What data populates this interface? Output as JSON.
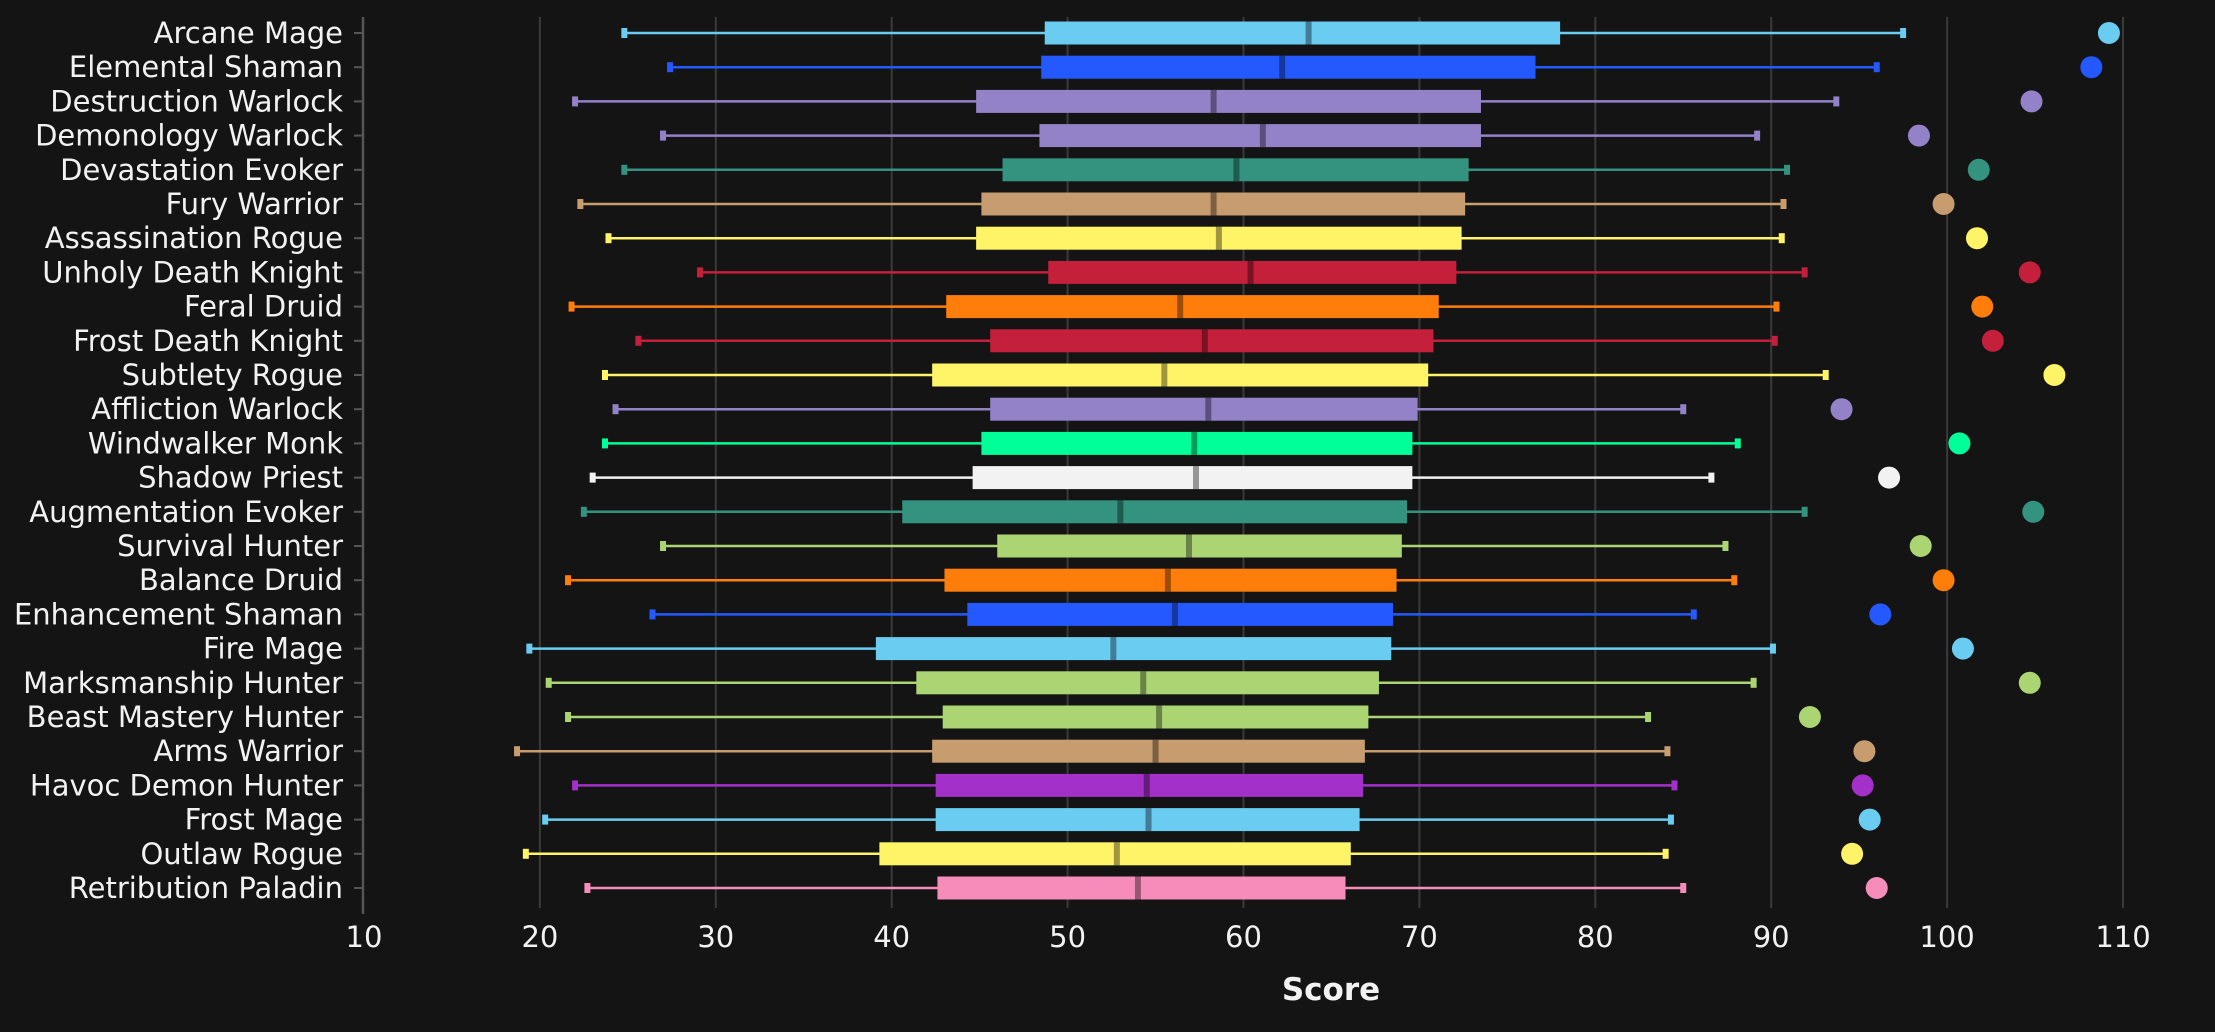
{
  "chart_data": {
    "type": "box",
    "orientation": "horizontal",
    "xlabel": "Score",
    "xlim": [
      10,
      110
    ],
    "xticks": [
      10,
      20,
      30,
      40,
      50,
      60,
      70,
      80,
      90,
      100,
      110
    ],
    "grid": true,
    "background": "#141414",
    "series": [
      {
        "category": "Arcane Mage",
        "color": "#69ccf0",
        "min": 24.8,
        "q1": 48.7,
        "median": 63.7,
        "q3": 78.0,
        "max": 97.5,
        "outlier": 109.2
      },
      {
        "category": "Elemental Shaman",
        "color": "#2459ff",
        "min": 27.4,
        "q1": 48.5,
        "median": 62.2,
        "q3": 76.6,
        "max": 96.0,
        "outlier": 108.2
      },
      {
        "category": "Destruction Warlock",
        "color": "#9482c9",
        "min": 22.0,
        "q1": 44.8,
        "median": 58.3,
        "q3": 73.5,
        "max": 93.7,
        "outlier": 104.8
      },
      {
        "category": "Demonology Warlock",
        "color": "#9482c9",
        "min": 27.0,
        "q1": 48.4,
        "median": 61.1,
        "q3": 73.5,
        "max": 89.2,
        "outlier": 98.4
      },
      {
        "category": "Devastation Evoker",
        "color": "#33937f",
        "min": 24.8,
        "q1": 46.3,
        "median": 59.6,
        "q3": 72.8,
        "max": 90.9,
        "outlier": 101.8
      },
      {
        "category": "Fury Warrior",
        "color": "#c79c6e",
        "min": 22.3,
        "q1": 45.1,
        "median": 58.3,
        "q3": 72.6,
        "max": 90.7,
        "outlier": 99.8
      },
      {
        "category": "Assassination Rogue",
        "color": "#fff468",
        "min": 23.9,
        "q1": 44.8,
        "median": 58.6,
        "q3": 72.4,
        "max": 90.6,
        "outlier": 101.7
      },
      {
        "category": "Unholy Death Knight",
        "color": "#c41f3b",
        "min": 29.1,
        "q1": 48.9,
        "median": 60.4,
        "q3": 72.1,
        "max": 91.9,
        "outlier": 104.7
      },
      {
        "category": "Feral Druid",
        "color": "#ff7d0a",
        "min": 21.8,
        "q1": 43.1,
        "median": 56.4,
        "q3": 71.1,
        "max": 90.3,
        "outlier": 102.0
      },
      {
        "category": "Frost Death Knight",
        "color": "#c41f3b",
        "min": 25.6,
        "q1": 45.6,
        "median": 57.8,
        "q3": 70.8,
        "max": 90.2,
        "outlier": 102.6
      },
      {
        "category": "Subtlety Rogue",
        "color": "#fff468",
        "min": 23.7,
        "q1": 42.3,
        "median": 55.5,
        "q3": 70.5,
        "max": 93.1,
        "outlier": 106.1
      },
      {
        "category": "Affliction Warlock",
        "color": "#9482c9",
        "min": 24.3,
        "q1": 45.6,
        "median": 58.0,
        "q3": 69.9,
        "max": 85.0,
        "outlier": 94.0
      },
      {
        "category": "Windwalker Monk",
        "color": "#00ff98",
        "min": 23.7,
        "q1": 45.1,
        "median": 57.2,
        "q3": 69.6,
        "max": 88.1,
        "outlier": 100.7
      },
      {
        "category": "Shadow Priest",
        "color": "#f2f2f2",
        "min": 23.0,
        "q1": 44.6,
        "median": 57.3,
        "q3": 69.6,
        "max": 86.6,
        "outlier": 96.7
      },
      {
        "category": "Augmentation Evoker",
        "color": "#33937f",
        "min": 22.5,
        "q1": 40.6,
        "median": 53.0,
        "q3": 69.3,
        "max": 91.9,
        "outlier": 104.9
      },
      {
        "category": "Survival Hunter",
        "color": "#abd473",
        "min": 27.0,
        "q1": 46.0,
        "median": 56.9,
        "q3": 69.0,
        "max": 87.4,
        "outlier": 98.5
      },
      {
        "category": "Balance Druid",
        "color": "#ff7d0a",
        "min": 21.6,
        "q1": 43.0,
        "median": 55.7,
        "q3": 68.7,
        "max": 87.9,
        "outlier": 99.8
      },
      {
        "category": "Enhancement Shaman",
        "color": "#2459ff",
        "min": 26.4,
        "q1": 44.3,
        "median": 56.1,
        "q3": 68.5,
        "max": 85.6,
        "outlier": 96.2
      },
      {
        "category": "Fire Mage",
        "color": "#69ccf0",
        "min": 19.4,
        "q1": 39.1,
        "median": 52.6,
        "q3": 68.4,
        "max": 90.1,
        "outlier": 100.9
      },
      {
        "category": "Marksmanship Hunter",
        "color": "#abd473",
        "min": 20.5,
        "q1": 41.4,
        "median": 54.3,
        "q3": 67.7,
        "max": 89.0,
        "outlier": 104.7
      },
      {
        "category": "Beast Mastery Hunter",
        "color": "#abd473",
        "min": 21.6,
        "q1": 42.9,
        "median": 55.2,
        "q3": 67.1,
        "max": 83.0,
        "outlier": 92.2
      },
      {
        "category": "Arms Warrior",
        "color": "#c79c6e",
        "min": 18.7,
        "q1": 42.3,
        "median": 55.0,
        "q3": 66.9,
        "max": 84.1,
        "outlier": 95.3
      },
      {
        "category": "Havoc Demon Hunter",
        "color": "#a330c9",
        "min": 22.0,
        "q1": 42.5,
        "median": 54.5,
        "q3": 66.8,
        "max": 84.5,
        "outlier": 95.2
      },
      {
        "category": "Frost Mage",
        "color": "#69ccf0",
        "min": 20.3,
        "q1": 42.5,
        "median": 54.6,
        "q3": 66.6,
        "max": 84.3,
        "outlier": 95.6
      },
      {
        "category": "Outlaw Rogue",
        "color": "#fff468",
        "min": 19.2,
        "q1": 39.3,
        "median": 52.8,
        "q3": 66.1,
        "max": 84.0,
        "outlier": 94.6
      },
      {
        "category": "Retribution Paladin",
        "color": "#f58cba",
        "min": 22.7,
        "q1": 42.6,
        "median": 54.0,
        "q3": 65.8,
        "max": 85.0,
        "outlier": 96.0
      }
    ]
  }
}
